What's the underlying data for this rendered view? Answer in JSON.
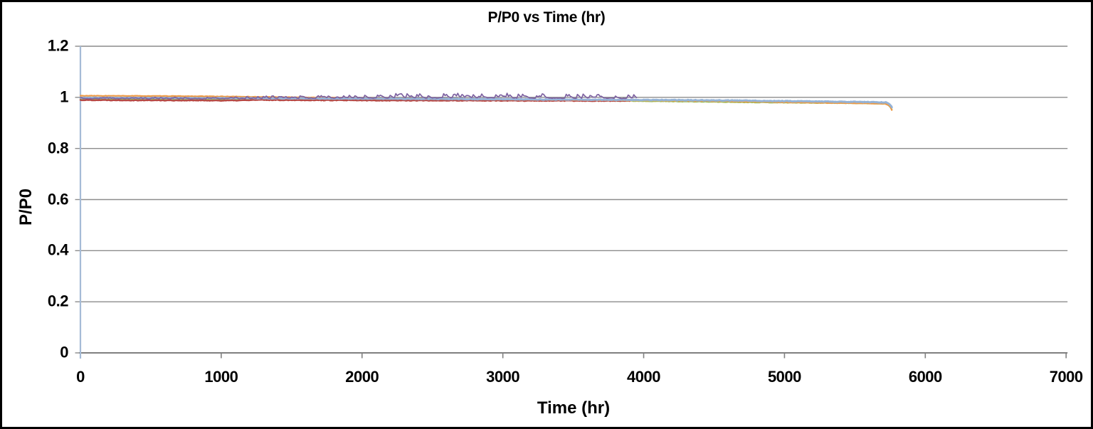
{
  "chart_data": {
    "type": "line",
    "title": "P/P0 vs Time (hr)",
    "xlabel": "Time (hr)",
    "ylabel": "P/P0",
    "xlim": [
      0,
      7000
    ],
    "ylim": [
      0,
      1.2
    ],
    "x_tick_values": [
      0,
      1000,
      2000,
      3000,
      4000,
      5000,
      6000,
      7000
    ],
    "x_tick_labels": [
      "0",
      "1000",
      "2000",
      "3000",
      "4000",
      "5000",
      "6000",
      "7000"
    ],
    "y_tick_values": [
      0,
      0.2,
      0.4,
      0.6,
      0.8,
      1,
      1.2
    ],
    "y_tick_labels": [
      "0",
      "0.2",
      "0.4",
      "0.6",
      "0.8",
      "1",
      "1.2"
    ],
    "grid": "horizontal-gridlines",
    "legend": "none",
    "series": [
      {
        "name": "green",
        "color": "#9BBB59",
        "width": 2.2,
        "noise": 0.0009,
        "seed": 11,
        "step": 9,
        "points": [
          [
            0,
            0.993
          ],
          [
            500,
            0.9925
          ],
          [
            1000,
            0.992
          ],
          [
            1500,
            0.9915
          ],
          [
            2000,
            0.991
          ],
          [
            2500,
            0.9905
          ],
          [
            3000,
            0.9895
          ],
          [
            3500,
            0.988
          ],
          [
            4000,
            0.9855
          ],
          [
            4400,
            0.983
          ],
          [
            4800,
            0.9805
          ],
          [
            5200,
            0.9785
          ],
          [
            5600,
            0.9765
          ],
          [
            5720,
            0.975
          ],
          [
            5748,
            0.966
          ],
          [
            5762,
            0.953
          ]
        ]
      },
      {
        "name": "dark-red",
        "color": "#B74743",
        "width": 2.4,
        "noise": 0.0013,
        "seed": 22,
        "step": 9,
        "points": [
          [
            0,
            0.9895
          ],
          [
            200,
            0.989
          ],
          [
            400,
            0.9885
          ],
          [
            700,
            0.988
          ],
          [
            1000,
            0.9875
          ],
          [
            1120,
            0.9878
          ],
          [
            1250,
            0.9898
          ],
          [
            1500,
            0.9893
          ],
          [
            2000,
            0.988
          ],
          [
            2500,
            0.9875
          ],
          [
            3000,
            0.987
          ],
          [
            3500,
            0.9865
          ],
          [
            3900,
            0.986
          ]
        ]
      },
      {
        "name": "orange",
        "color": "#EE9A45",
        "width": 2.2,
        "noise": 0.0008,
        "seed": 33,
        "step": 9,
        "points": [
          [
            0,
            1.006
          ],
          [
            300,
            1.0057
          ],
          [
            600,
            1.005
          ],
          [
            1000,
            1.0035
          ],
          [
            1400,
            1.001
          ],
          [
            1800,
            0.9985
          ],
          [
            2200,
            0.996
          ],
          [
            2600,
            0.9935
          ],
          [
            3000,
            0.9915
          ],
          [
            3400,
            0.99
          ],
          [
            3800,
            0.9885
          ],
          [
            4200,
            0.987
          ],
          [
            4600,
            0.9845
          ],
          [
            5000,
            0.981
          ],
          [
            5300,
            0.9785
          ],
          [
            5600,
            0.9765
          ],
          [
            5720,
            0.9745
          ],
          [
            5750,
            0.9645
          ],
          [
            5762,
            0.951
          ]
        ]
      },
      {
        "name": "light-blue",
        "color": "#95B3D7",
        "width": 3,
        "noise": 0.0012,
        "seed": 44,
        "step": 8,
        "points": [
          [
            0,
            0.9985
          ],
          [
            300,
            0.998
          ],
          [
            600,
            0.9975
          ],
          [
            1000,
            0.997
          ],
          [
            1400,
            0.9962
          ],
          [
            1800,
            0.9952
          ],
          [
            2200,
            0.9945
          ],
          [
            2600,
            0.9935
          ],
          [
            3000,
            0.9925
          ],
          [
            3400,
            0.9915
          ],
          [
            3800,
            0.9905
          ],
          [
            4200,
            0.9895
          ],
          [
            4600,
            0.988
          ],
          [
            5000,
            0.9855
          ],
          [
            5300,
            0.9835
          ],
          [
            5600,
            0.9815
          ],
          [
            5720,
            0.98
          ],
          [
            5750,
            0.972
          ],
          [
            5762,
            0.962
          ]
        ]
      },
      {
        "name": "purple",
        "color": "#7E62A1",
        "width": 1.7,
        "noise": 0.0014,
        "seed": 55,
        "step": 10,
        "points": [
          [
            0,
            0.996
          ],
          [
            300,
            0.995
          ],
          [
            600,
            0.9945
          ],
          [
            1000,
            0.9948
          ],
          [
            1400,
            0.9962
          ],
          [
            1800,
            0.9974
          ],
          [
            2200,
            0.998
          ],
          [
            2600,
            0.998
          ],
          [
            3000,
            0.998
          ],
          [
            3400,
            0.997
          ],
          [
            3700,
            0.9962
          ],
          [
            3950,
            0.996
          ]
        ],
        "spike_points": [
          [
            0,
            0.004
          ],
          [
            300,
            0.0045
          ],
          [
            600,
            0.005
          ],
          [
            1000,
            0.007
          ],
          [
            1400,
            0.01
          ],
          [
            1800,
            0.012
          ],
          [
            2000,
            0.015
          ],
          [
            2400,
            0.018
          ],
          [
            2800,
            0.018
          ],
          [
            3200,
            0.017
          ],
          [
            3600,
            0.016
          ],
          [
            3950,
            0.014
          ]
        ]
      }
    ]
  },
  "layout_colors": {
    "background": "#FFFFFF",
    "border": "#000000",
    "grid": "#8C8C8C",
    "x_axis": "#808080",
    "y_axis": "#A5BBD6",
    "text": "#000000"
  }
}
